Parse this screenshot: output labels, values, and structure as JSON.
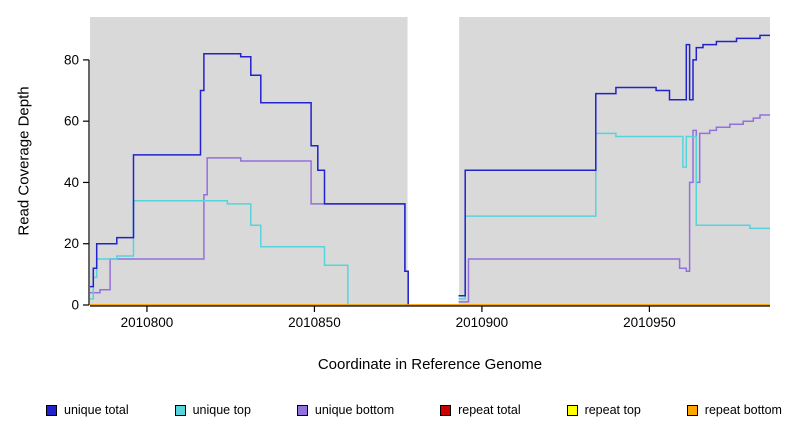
{
  "chart_data": {
    "type": "line",
    "subtype": "step",
    "title": "",
    "xlabel": "Coordinate in Reference Genome",
    "ylabel": "Read Coverage Depth",
    "xlim": [
      2010783,
      2010986
    ],
    "ylim": [
      0,
      94
    ],
    "x_ticks": [
      2010800,
      2010850,
      2010900,
      2010950
    ],
    "y_ticks": [
      0,
      20,
      40,
      60,
      80
    ],
    "plot_bg": "#d9d9d9",
    "axis_color": "#000000",
    "gap_region": {
      "x0": 2010877.8,
      "x1": 2010893.2,
      "color": "#ffffff"
    },
    "draw_order": [
      3,
      4,
      2,
      1,
      0,
      5
    ],
    "series": [
      {
        "name": "unique total",
        "color": "#2222cc",
        "segments": [
          [
            [
              2010783,
              6
            ],
            [
              2010784,
              12
            ],
            [
              2010785,
              20
            ],
            [
              2010791,
              22
            ],
            [
              2010796,
              49
            ],
            [
              2010815,
              49
            ],
            [
              2010816,
              70
            ],
            [
              2010817,
              82
            ],
            [
              2010827,
              82
            ],
            [
              2010828,
              81
            ],
            [
              2010830,
              81
            ],
            [
              2010831,
              75
            ],
            [
              2010833,
              75
            ],
            [
              2010834,
              66
            ],
            [
              2010848,
              66
            ],
            [
              2010849,
              52
            ],
            [
              2010850,
              52
            ],
            [
              2010851,
              44
            ],
            [
              2010852,
              44
            ],
            [
              2010853,
              33
            ],
            [
              2010876,
              33
            ],
            [
              2010877,
              11
            ],
            [
              2010878,
              0
            ]
          ],
          [
            [
              2010893,
              3
            ],
            [
              2010895,
              44
            ],
            [
              2010933,
              44
            ],
            [
              2010934,
              69
            ],
            [
              2010939,
              69
            ],
            [
              2010940,
              71
            ],
            [
              2010951,
              71
            ],
            [
              2010952,
              70
            ],
            [
              2010955,
              70
            ],
            [
              2010956,
              67
            ],
            [
              2010960,
              67
            ],
            [
              2010961,
              85
            ],
            [
              2010962,
              67
            ],
            [
              2010963,
              80
            ],
            [
              2010964,
              84
            ],
            [
              2010966,
              85
            ],
            [
              2010970,
              86
            ],
            [
              2010975,
              86
            ],
            [
              2010976,
              87
            ],
            [
              2010982,
              87
            ],
            [
              2010983,
              88
            ],
            [
              2010986,
              88
            ]
          ]
        ]
      },
      {
        "name": "unique top",
        "color": "#55d4dc",
        "segments": [
          [
            [
              2010783,
              2
            ],
            [
              2010784,
              9
            ],
            [
              2010785,
              15
            ],
            [
              2010791,
              16
            ],
            [
              2010796,
              34
            ],
            [
              2010823,
              34
            ],
            [
              2010824,
              33
            ],
            [
              2010830,
              33
            ],
            [
              2010831,
              26
            ],
            [
              2010833,
              26
            ],
            [
              2010834,
              19
            ],
            [
              2010852,
              19
            ],
            [
              2010853,
              13
            ],
            [
              2010859,
              13
            ],
            [
              2010860,
              0
            ],
            [
              2010878,
              0
            ]
          ],
          [
            [
              2010893,
              2
            ],
            [
              2010895,
              29
            ],
            [
              2010933,
              29
            ],
            [
              2010934,
              56
            ],
            [
              2010939,
              56
            ],
            [
              2010940,
              55
            ],
            [
              2010959,
              55
            ],
            [
              2010960,
              45
            ],
            [
              2010961,
              55
            ],
            [
              2010963,
              55
            ],
            [
              2010964,
              26
            ],
            [
              2010979,
              26
            ],
            [
              2010980,
              25
            ],
            [
              2010986,
              25
            ]
          ]
        ]
      },
      {
        "name": "unique bottom",
        "color": "#9370db",
        "segments": [
          [
            [
              2010783,
              4
            ],
            [
              2010786,
              5
            ],
            [
              2010789,
              15
            ],
            [
              2010816,
              15
            ],
            [
              2010817,
              36
            ],
            [
              2010818,
              48
            ],
            [
              2010827,
              48
            ],
            [
              2010828,
              47
            ],
            [
              2010848,
              47
            ],
            [
              2010849,
              33
            ],
            [
              2010876,
              33
            ],
            [
              2010877,
              11
            ],
            [
              2010878,
              0
            ]
          ],
          [
            [
              2010893,
              1
            ],
            [
              2010896,
              15
            ],
            [
              2010958,
              15
            ],
            [
              2010959,
              12
            ],
            [
              2010961,
              11
            ],
            [
              2010962,
              40
            ],
            [
              2010963,
              57
            ],
            [
              2010964,
              40
            ],
            [
              2010965,
              56
            ],
            [
              2010968,
              57
            ],
            [
              2010970,
              58
            ],
            [
              2010974,
              59
            ],
            [
              2010978,
              60
            ],
            [
              2010981,
              61
            ],
            [
              2010983,
              62
            ],
            [
              2010986,
              62
            ]
          ]
        ]
      },
      {
        "name": "repeat total",
        "color": "#cc0000",
        "segments": [
          [
            [
              2010783,
              0
            ],
            [
              2010986,
              0
            ]
          ]
        ]
      },
      {
        "name": "repeat top",
        "color": "#ffff00",
        "segments": [
          [
            [
              2010783,
              0
            ],
            [
              2010986,
              0
            ]
          ]
        ]
      },
      {
        "name": "repeat bottom",
        "color": "#ffa500",
        "segments": [
          [
            [
              2010783,
              0
            ],
            [
              2010986,
              0
            ]
          ]
        ]
      }
    ]
  },
  "legend": {
    "items": [
      {
        "label": "unique total",
        "color": "#2222cc"
      },
      {
        "label": "unique top",
        "color": "#55d4dc"
      },
      {
        "label": "unique bottom",
        "color": "#9370db"
      },
      {
        "label": "repeat total",
        "color": "#cc0000"
      },
      {
        "label": "repeat top",
        "color": "#ffff00"
      },
      {
        "label": "repeat bottom",
        "color": "#ffa500"
      }
    ]
  }
}
